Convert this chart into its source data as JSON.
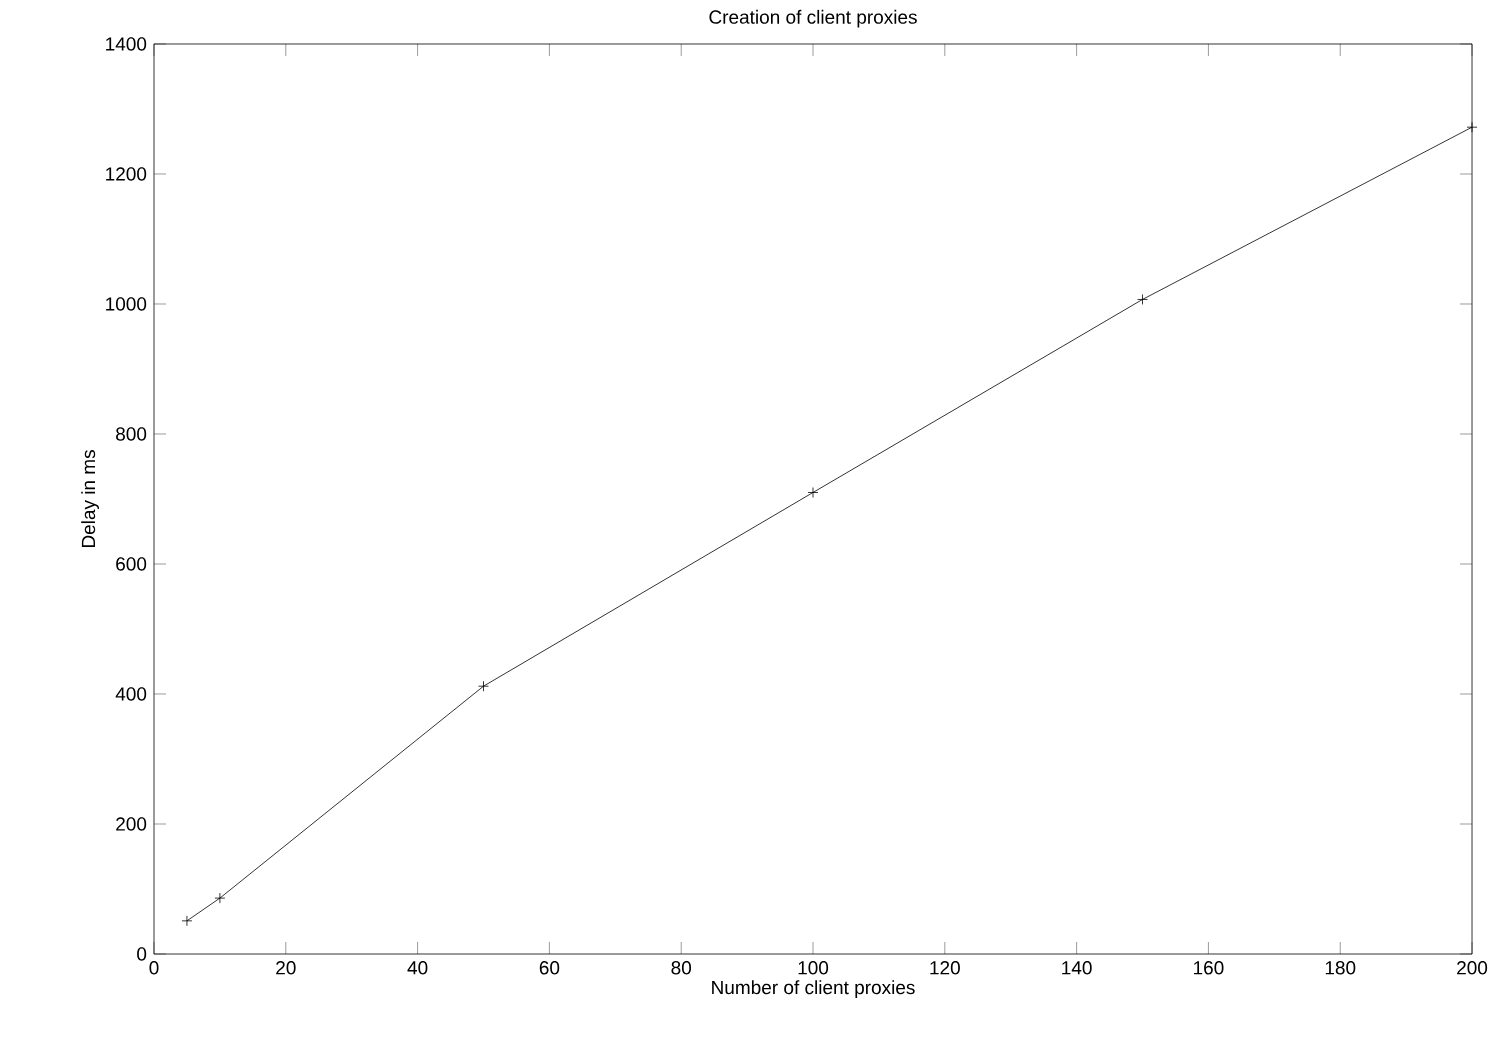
{
  "chart_data": {
    "type": "line",
    "title": "Creation of client proxies",
    "xlabel": "Number of client proxies",
    "ylabel": "Delay in ms",
    "x": [
      5,
      10,
      50,
      100,
      150,
      200
    ],
    "series": [
      {
        "color": "#000000",
        "values": [
          51,
          86,
          412,
          710,
          1007,
          1272
        ]
      }
    ],
    "xlim": [
      0,
      200
    ],
    "xticks": [
      0,
      20,
      40,
      60,
      80,
      100,
      120,
      140,
      160,
      180,
      200
    ],
    "ylim": [
      0,
      1400
    ],
    "yticks": [
      0,
      200,
      400,
      600,
      800,
      1000,
      1200,
      1400
    ],
    "marker": "cross",
    "line_style": "solid",
    "grid": false
  }
}
